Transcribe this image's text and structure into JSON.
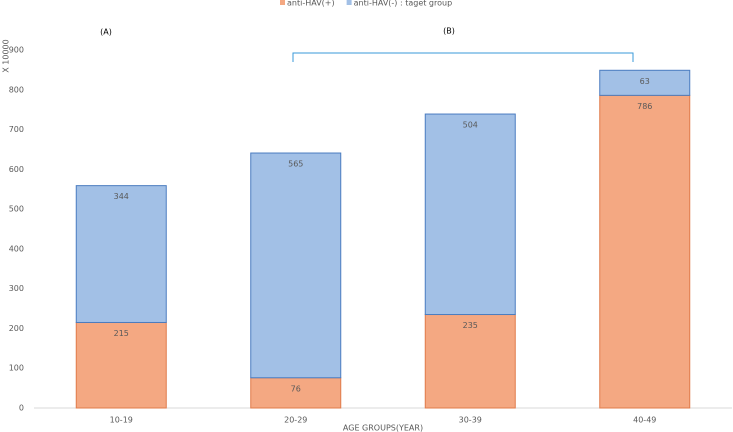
{
  "chart_data": {
    "type": "stacked_bar",
    "y_label": "X 10000",
    "x_label": "AGE GROUPS(YEAR)",
    "annotations": [
      "(A)",
      "(B)"
    ],
    "categories": [
      "10-19",
      "20-29",
      "30-39",
      "40-49"
    ],
    "series": [
      {
        "name": "anti-HAV(+)",
        "color": "#f4a882",
        "values": [
          215,
          76,
          235,
          786
        ]
      },
      {
        "name": "anti-HAV(-) : taget group",
        "color": "#a2c0e6",
        "values": [
          344,
          565,
          504,
          63
        ]
      }
    ],
    "ylim": [
      0,
      900
    ],
    "yticks": [
      0,
      100,
      200,
      300,
      400,
      500,
      600,
      700,
      800,
      900
    ],
    "legend": "top"
  }
}
